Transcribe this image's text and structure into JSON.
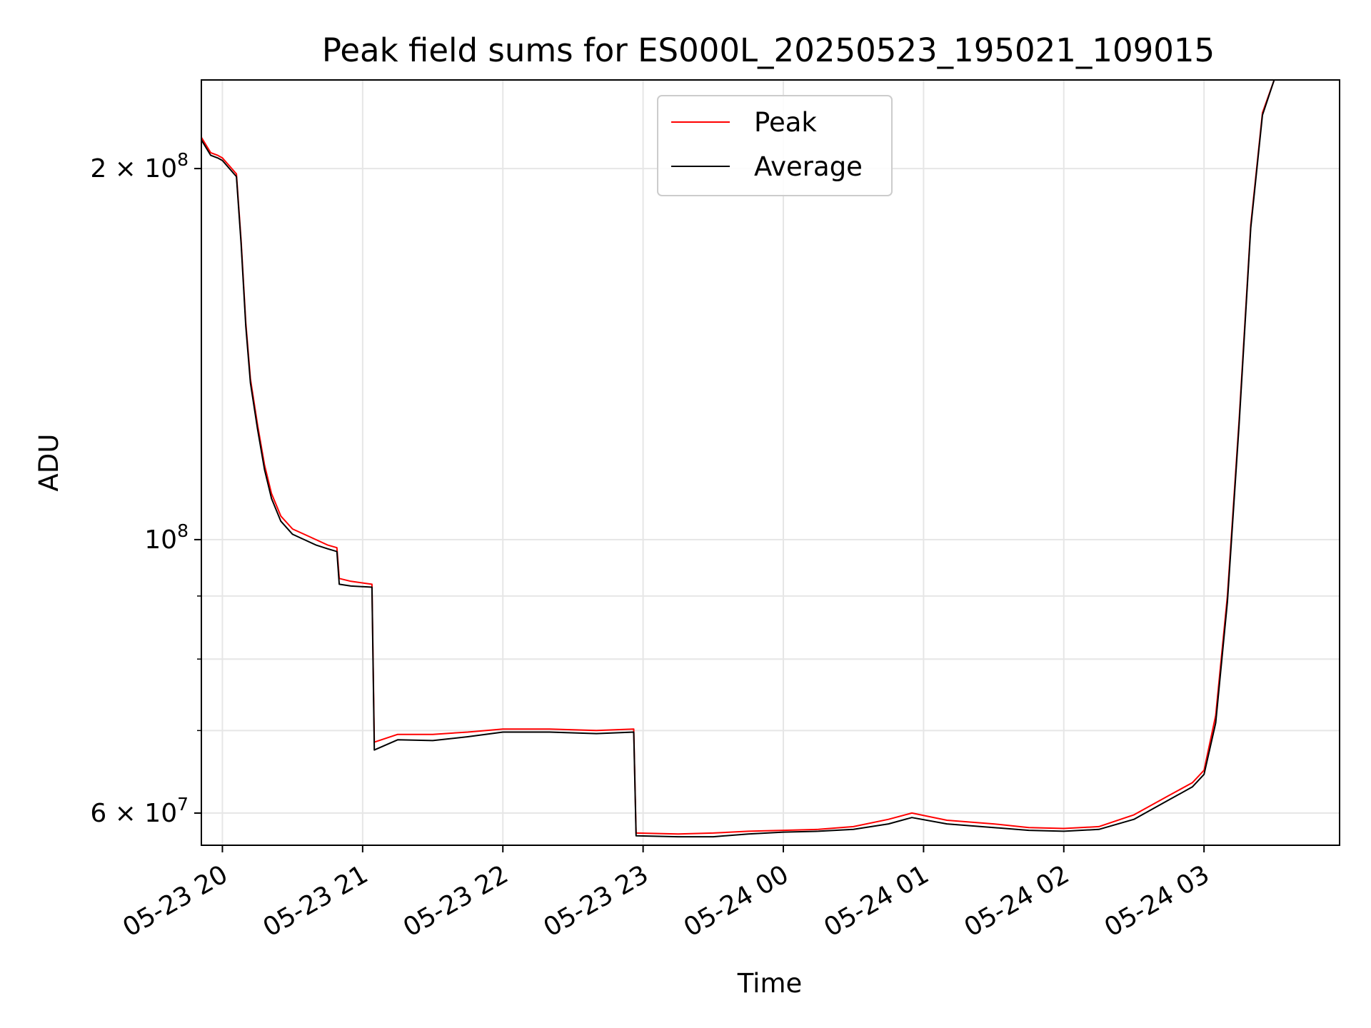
{
  "chart_data": {
    "type": "line",
    "title": "Peak field sums for ES000L_20250523_195021_109015",
    "xlabel": "Time",
    "ylabel": "ADU",
    "y_scale": "log",
    "ylim": [
      56500000,
      236000000
    ],
    "xlim": [
      "2025-05-23 19:51",
      "2025-05-24 03:58"
    ],
    "grid": true,
    "legend": {
      "placement": "top-center"
    },
    "x_ticks": [
      {
        "t": "2025-05-23 20:00",
        "label": "05-23 20"
      },
      {
        "t": "2025-05-23 21:00",
        "label": "05-23 21"
      },
      {
        "t": "2025-05-23 22:00",
        "label": "05-23 22"
      },
      {
        "t": "2025-05-23 23:00",
        "label": "05-23 23"
      },
      {
        "t": "2025-05-24 00:00",
        "label": "05-24 00"
      },
      {
        "t": "2025-05-24 01:00",
        "label": "05-24 01"
      },
      {
        "t": "2025-05-24 02:00",
        "label": "05-24 02"
      },
      {
        "t": "2025-05-24 03:00",
        "label": "05-24 03"
      }
    ],
    "y_ticks": [
      {
        "value": 60000000,
        "base": "6 × 10",
        "exp": "7"
      },
      {
        "value": 100000000,
        "base": "10",
        "exp": "8"
      },
      {
        "value": 200000000,
        "base": "2 × 10",
        "exp": "8"
      }
    ],
    "y_minor_ticks": [
      70000000,
      80000000,
      90000000
    ],
    "series": [
      {
        "name": "Peak",
        "color": "#ff0000",
        "points": [
          [
            "2025-05-23 19:51",
            212000000
          ],
          [
            "2025-05-23 19:55",
            206000000
          ],
          [
            "2025-05-23 19:58",
            205000000
          ],
          [
            "2025-05-23 20:00",
            204000000
          ],
          [
            "2025-05-23 20:03",
            201000000
          ],
          [
            "2025-05-23 20:06",
            198000000
          ],
          [
            "2025-05-23 20:08",
            175000000
          ],
          [
            "2025-05-23 20:10",
            150000000
          ],
          [
            "2025-05-23 20:12",
            135000000
          ],
          [
            "2025-05-23 20:15",
            124000000
          ],
          [
            "2025-05-23 20:18",
            115000000
          ],
          [
            "2025-05-23 20:21",
            109000000
          ],
          [
            "2025-05-23 20:25",
            104500000
          ],
          [
            "2025-05-23 20:30",
            102000000
          ],
          [
            "2025-05-23 20:35",
            101000000
          ],
          [
            "2025-05-23 20:40",
            100000000
          ],
          [
            "2025-05-23 20:45",
            99000000
          ],
          [
            "2025-05-23 20:49",
            98500000
          ],
          [
            "2025-05-23 20:50",
            93000000
          ],
          [
            "2025-05-23 20:55",
            92500000
          ],
          [
            "2025-05-23 21:04",
            92000000
          ],
          [
            "2025-05-23 21:05",
            68500000
          ],
          [
            "2025-05-23 21:15",
            69500000
          ],
          [
            "2025-05-23 21:30",
            69500000
          ],
          [
            "2025-05-23 21:45",
            69800000
          ],
          [
            "2025-05-23 22:00",
            70200000
          ],
          [
            "2025-05-23 22:20",
            70200000
          ],
          [
            "2025-05-23 22:40",
            70000000
          ],
          [
            "2025-05-23 22:56",
            70200000
          ],
          [
            "2025-05-23 22:57",
            57800000
          ],
          [
            "2025-05-23 23:15",
            57700000
          ],
          [
            "2025-05-23 23:30",
            57800000
          ],
          [
            "2025-05-23 23:45",
            58000000
          ],
          [
            "2025-05-24 00:00",
            58100000
          ],
          [
            "2025-05-24 00:15",
            58200000
          ],
          [
            "2025-05-24 00:30",
            58500000
          ],
          [
            "2025-05-24 00:45",
            59300000
          ],
          [
            "2025-05-24 00:55",
            60000000
          ],
          [
            "2025-05-24 01:10",
            59200000
          ],
          [
            "2025-05-24 01:30",
            58800000
          ],
          [
            "2025-05-24 01:45",
            58400000
          ],
          [
            "2025-05-24 02:00",
            58300000
          ],
          [
            "2025-05-24 02:15",
            58500000
          ],
          [
            "2025-05-24 02:30",
            59800000
          ],
          [
            "2025-05-24 02:45",
            62000000
          ],
          [
            "2025-05-24 02:55",
            63500000
          ],
          [
            "2025-05-24 03:00",
            65000000
          ],
          [
            "2025-05-24 03:05",
            72000000
          ],
          [
            "2025-05-24 03:10",
            90000000
          ],
          [
            "2025-05-24 03:15",
            125000000
          ],
          [
            "2025-05-24 03:20",
            180000000
          ],
          [
            "2025-05-24 03:25",
            222000000
          ],
          [
            "2025-05-24 03:30",
            236000000
          ],
          [
            "2025-05-24 03:58",
            236000000
          ]
        ]
      },
      {
        "name": "Average",
        "color": "#000000",
        "points": [
          [
            "2025-05-23 19:51",
            211000000
          ],
          [
            "2025-05-23 19:55",
            205000000
          ],
          [
            "2025-05-23 19:58",
            204000000
          ],
          [
            "2025-05-23 20:00",
            203000000
          ],
          [
            "2025-05-23 20:03",
            200000000
          ],
          [
            "2025-05-23 20:06",
            197000000
          ],
          [
            "2025-05-23 20:08",
            174000000
          ],
          [
            "2025-05-23 20:10",
            149000000
          ],
          [
            "2025-05-23 20:12",
            134000000
          ],
          [
            "2025-05-23 20:15",
            123000000
          ],
          [
            "2025-05-23 20:18",
            114000000
          ],
          [
            "2025-05-23 20:21",
            108000000
          ],
          [
            "2025-05-23 20:25",
            103500000
          ],
          [
            "2025-05-23 20:30",
            101000000
          ],
          [
            "2025-05-23 20:35",
            100000000
          ],
          [
            "2025-05-23 20:40",
            99000000
          ],
          [
            "2025-05-23 20:45",
            98300000
          ],
          [
            "2025-05-23 20:49",
            97800000
          ],
          [
            "2025-05-23 20:50",
            92000000
          ],
          [
            "2025-05-23 20:55",
            91700000
          ],
          [
            "2025-05-23 21:04",
            91500000
          ],
          [
            "2025-05-23 21:05",
            67500000
          ],
          [
            "2025-05-23 21:15",
            68800000
          ],
          [
            "2025-05-23 21:30",
            68700000
          ],
          [
            "2025-05-23 21:45",
            69200000
          ],
          [
            "2025-05-23 22:00",
            69800000
          ],
          [
            "2025-05-23 22:20",
            69800000
          ],
          [
            "2025-05-23 22:40",
            69600000
          ],
          [
            "2025-05-23 22:56",
            69800000
          ],
          [
            "2025-05-23 22:57",
            57500000
          ],
          [
            "2025-05-23 23:15",
            57400000
          ],
          [
            "2025-05-23 23:30",
            57400000
          ],
          [
            "2025-05-23 23:45",
            57700000
          ],
          [
            "2025-05-24 00:00",
            57900000
          ],
          [
            "2025-05-24 00:15",
            58000000
          ],
          [
            "2025-05-24 00:30",
            58200000
          ],
          [
            "2025-05-24 00:45",
            58800000
          ],
          [
            "2025-05-24 00:55",
            59500000
          ],
          [
            "2025-05-24 01:10",
            58800000
          ],
          [
            "2025-05-24 01:30",
            58400000
          ],
          [
            "2025-05-24 01:45",
            58100000
          ],
          [
            "2025-05-24 02:00",
            58000000
          ],
          [
            "2025-05-24 02:15",
            58200000
          ],
          [
            "2025-05-24 02:30",
            59300000
          ],
          [
            "2025-05-24 02:45",
            61500000
          ],
          [
            "2025-05-24 02:55",
            63000000
          ],
          [
            "2025-05-24 03:00",
            64500000
          ],
          [
            "2025-05-24 03:05",
            71000000
          ],
          [
            "2025-05-24 03:10",
            89000000
          ],
          [
            "2025-05-24 03:15",
            124000000
          ],
          [
            "2025-05-24 03:20",
            179000000
          ],
          [
            "2025-05-24 03:25",
            221000000
          ],
          [
            "2025-05-24 03:30",
            236000000
          ],
          [
            "2025-05-24 03:58",
            236000000
          ]
        ]
      }
    ]
  }
}
